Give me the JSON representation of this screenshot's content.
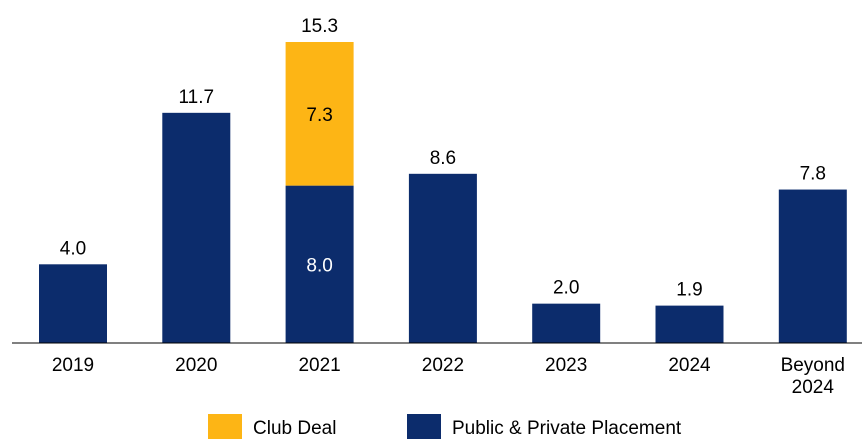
{
  "chart_data": {
    "type": "stacked_bar",
    "categories": [
      "2019",
      "2020",
      "2021",
      "2022",
      "2023",
      "2024",
      "Beyond 2024"
    ],
    "series": [
      {
        "name": "Public & Private Placement",
        "color": "#0c2c6c",
        "values": [
          4.0,
          11.7,
          8.0,
          8.6,
          2.0,
          1.9,
          7.8
        ],
        "value_labels": [
          null,
          null,
          "8.0",
          null,
          null,
          null,
          null
        ]
      },
      {
        "name": "Club Deal",
        "color": "#fdb515",
        "values": [
          null,
          null,
          7.3,
          null,
          null,
          null,
          null
        ],
        "value_labels": [
          null,
          null,
          "7.3",
          null,
          null,
          null,
          null
        ]
      }
    ],
    "totals": [
      4.0,
      11.7,
      15.3,
      8.6,
      2.0,
      1.9,
      7.8
    ],
    "total_labels": [
      "4.0",
      "11.7",
      "15.3",
      "8.6",
      "2.0",
      "1.9",
      "7.8"
    ],
    "legend": "bottom"
  }
}
